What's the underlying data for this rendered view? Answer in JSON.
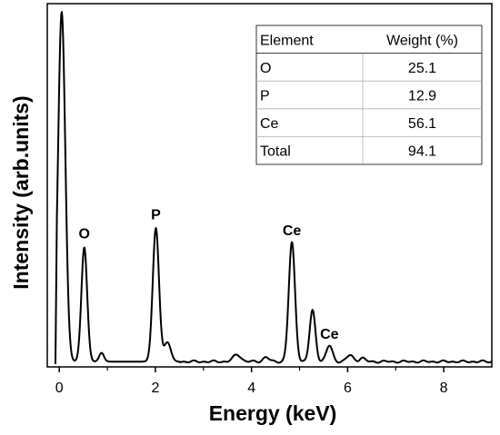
{
  "chart_data": {
    "type": "line",
    "xlabel": "Energy (keV)",
    "ylabel": "Intensity (arb.units)",
    "xlim": [
      -0.25,
      9.0
    ],
    "ylim": [
      0,
      100
    ],
    "x_ticks": [
      0,
      2,
      4,
      6,
      8
    ],
    "grid": false,
    "series": [
      {
        "baseline": 1.5,
        "peaks": [
          {
            "x": 0.05,
            "y": 99.5,
            "sigma": 0.075
          },
          {
            "x": 0.52,
            "y": 32.5,
            "sigma": 0.06
          },
          {
            "x": 0.88,
            "y": 2.5,
            "sigma": 0.05
          },
          {
            "x": 2.01,
            "y": 38.0,
            "sigma": 0.065
          },
          {
            "x": 2.25,
            "y": 5.5,
            "sigma": 0.07
          },
          {
            "x": 3.7,
            "y": 2.0,
            "sigma": 0.08
          },
          {
            "x": 4.3,
            "y": 1.3,
            "sigma": 0.06
          },
          {
            "x": 4.84,
            "y": 33.8,
            "sigma": 0.065
          },
          {
            "x": 5.27,
            "y": 14.5,
            "sigma": 0.06
          },
          {
            "x": 5.62,
            "y": 4.5,
            "sigma": 0.065
          },
          {
            "x": 6.05,
            "y": 1.8,
            "sigma": 0.07
          },
          {
            "x": 6.3,
            "y": 1.0,
            "sigma": 0.06
          }
        ]
      }
    ],
    "annotations": [
      {
        "text": "O",
        "x": 0.52,
        "y": 36.5
      },
      {
        "text": "P",
        "x": 2.01,
        "y": 42.0
      },
      {
        "text": "Ce",
        "x": 4.84,
        "y": 37.5
      },
      {
        "text": "Ce",
        "x": 5.62,
        "y": 8.0
      }
    ],
    "table": {
      "headers": [
        "Element",
        "Weight (%)"
      ],
      "rows": [
        [
          "O",
          "25.1"
        ],
        [
          "P",
          "12.9"
        ],
        [
          "Ce",
          "56.1"
        ],
        [
          "Total",
          "94.1"
        ]
      ]
    }
  }
}
